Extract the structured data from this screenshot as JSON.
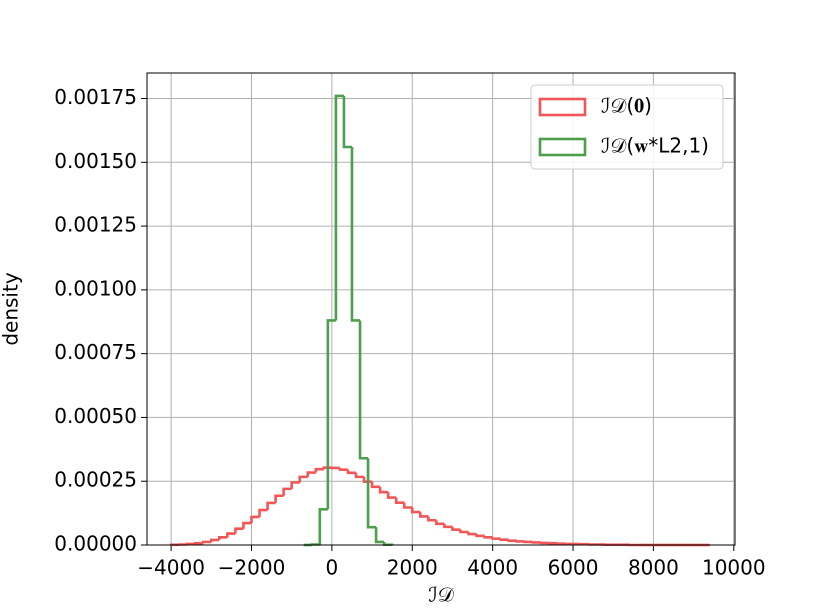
{
  "chart_data": {
    "type": "histogram",
    "x_label": "ℐ𝒟",
    "y_label": "density",
    "xlim": [
      -4600,
      10030
    ],
    "xticks": [
      {
        "value": -4000,
        "label": "−4000"
      },
      {
        "value": -2000,
        "label": "−2000"
      },
      0,
      2000,
      4000,
      6000,
      8000,
      10000
    ],
    "ylim": [
      0,
      0.00185
    ],
    "yticks": [
      {
        "value": 0,
        "label": "0.00000"
      },
      {
        "value": 0.00025,
        "label": "0.00025"
      },
      {
        "value": 0.0005,
        "label": "0.00050"
      },
      {
        "value": 0.00075,
        "label": "0.00075"
      },
      {
        "value": 0.001,
        "label": "0.00100"
      },
      {
        "value": 0.00125,
        "label": "0.00125"
      },
      {
        "value": 0.0015,
        "label": "0.00150"
      },
      {
        "value": 0.00175,
        "label": "0.00175"
      }
    ],
    "grid": true,
    "legend_position": "upper right",
    "series": [
      {
        "name": "ℐ𝒟(𝟎)",
        "color": "#f25656",
        "bins": [
          -4000,
          -3800,
          -3600,
          -3400,
          -3200,
          -3000,
          -2800,
          -2600,
          -2400,
          -2200,
          -2000,
          -1800,
          -1600,
          -1400,
          -1200,
          -1000,
          -800,
          -600,
          -400,
          -200,
          0,
          200,
          400,
          600,
          800,
          1000,
          1200,
          1400,
          1600,
          1800,
          2000,
          2200,
          2400,
          2600,
          2800,
          3000,
          3200,
          3400,
          3600,
          3800,
          4000,
          4200,
          4400,
          4600,
          4800,
          5000,
          5200,
          5400,
          5600,
          5800,
          6000,
          6200,
          6400,
          6600,
          6800,
          7000,
          7200,
          7400,
          7600,
          7800,
          8000,
          8200,
          8400,
          8600,
          8800,
          9000,
          9200,
          9400
        ],
        "values": [
          1e-06,
          2e-06,
          4e-06,
          7e-06,
          1.2e-05,
          2e-05,
          3e-05,
          4.5e-05,
          6.4e-05,
          8.6e-05,
          0.00011,
          0.000137,
          0.000165,
          0.000193,
          0.00022,
          0.000245,
          0.000267,
          0.000284,
          0.000297,
          0.000303,
          0.000302,
          0.000295,
          0.000283,
          0.000267,
          0.000248,
          0.000228,
          0.000207,
          0.000186,
          0.000166,
          0.000147,
          0.000129,
          0.000112,
          9.7e-05,
          8.3e-05,
          7.1e-05,
          6e-05,
          5.1e-05,
          4.3e-05,
          3.6e-05,
          3e-05,
          2.5e-05,
          2.1e-05,
          1.7e-05,
          1.4e-05,
          1.2e-05,
          1e-05,
          8e-06,
          7e-06,
          5e-06,
          4e-06,
          4e-06,
          3e-06,
          2e-06,
          2e-06,
          1e-06,
          1e-06,
          1e-06,
          0,
          0,
          0,
          0,
          0,
          0,
          0,
          0,
          0,
          0
        ]
      },
      {
        "name": "ℐ𝒟(𝐰*L2,1)",
        "color": "#4c9f4c",
        "bins": [
          -700,
          -500,
          -300,
          -100,
          100,
          300,
          500,
          700,
          900,
          1100,
          1300,
          1500
        ],
        "values": [
          0,
          2e-06,
          0.00014,
          0.00088,
          0.00176,
          0.00156,
          0.00088,
          0.00034,
          7e-05,
          1.2e-05,
          1e-06
        ]
      }
    ]
  }
}
